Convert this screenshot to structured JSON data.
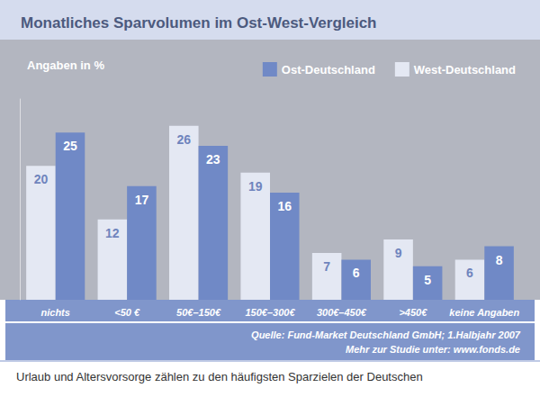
{
  "chart_data": {
    "type": "bar",
    "title": "Monatliches Sparvolumen im Ost-West-Vergleich",
    "ylabel": "Angaben in %",
    "categories": [
      "nichts",
      "<50 €",
      "50€–150€",
      "150€–300€",
      "300€–450€",
      ">450€",
      "keine Angaben"
    ],
    "series": [
      {
        "name": "West-Deutschland",
        "color": "#e4e8f3",
        "values": [
          20,
          12,
          26,
          19,
          7,
          9,
          6
        ]
      },
      {
        "name": "Ost-Deutschland",
        "color": "#7089c6",
        "values": [
          25,
          17,
          23,
          16,
          6,
          5,
          8
        ]
      }
    ],
    "ylim": [
      0,
      30
    ],
    "grid": false,
    "legend": "top-right",
    "data_labels": true,
    "tick_labels": "x",
    "source": [
      "Quelle: Fund-Market Deutschland GmbH; 1.Halbjahr 2007",
      "Mehr zur Studie unter: www.fonds.de"
    ],
    "caption": "Urlaub und Altersvorsorge zählen zu den häufigsten Sparzielen der Deutschen"
  }
}
